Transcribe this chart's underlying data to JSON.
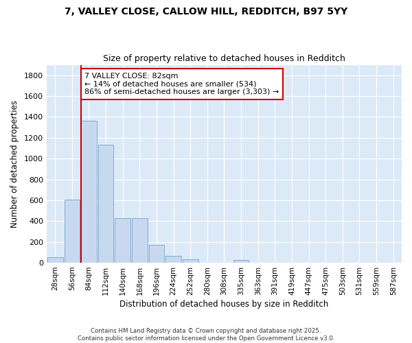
{
  "title1": "7, VALLEY CLOSE, CALLOW HILL, REDDITCH, B97 5YY",
  "title2": "Size of property relative to detached houses in Redditch",
  "xlabel": "Distribution of detached houses by size in Redditch",
  "ylabel": "Number of detached properties",
  "categories": [
    "28sqm",
    "56sqm",
    "84sqm",
    "112sqm",
    "140sqm",
    "168sqm",
    "196sqm",
    "224sqm",
    "252sqm",
    "280sqm",
    "308sqm",
    "335sqm",
    "363sqm",
    "391sqm",
    "419sqm",
    "447sqm",
    "475sqm",
    "503sqm",
    "531sqm",
    "559sqm",
    "587sqm"
  ],
  "values": [
    55,
    605,
    1365,
    1130,
    430,
    430,
    170,
    65,
    32,
    0,
    0,
    25,
    0,
    0,
    0,
    0,
    0,
    0,
    0,
    0,
    0
  ],
  "bar_color": "#c8d9ef",
  "bar_edge_color": "#7bafd4",
  "vline_color": "#cc0000",
  "annotation_text": "7 VALLEY CLOSE: 82sqm\n← 14% of detached houses are smaller (534)\n86% of semi-detached houses are larger (3,303) →",
  "annotation_box_color": "#ffffff",
  "annotation_box_edge": "#cc0000",
  "ylim": [
    0,
    1900
  ],
  "yticks": [
    0,
    200,
    400,
    600,
    800,
    1000,
    1200,
    1400,
    1600,
    1800
  ],
  "bg_color": "#dce9f7",
  "grid_color": "#ffffff",
  "fig_bg": "#ffffff",
  "footer1": "Contains HM Land Registry data © Crown copyright and database right 2025.",
  "footer2": "Contains public sector information licensed under the Open Government Licence v3.0."
}
